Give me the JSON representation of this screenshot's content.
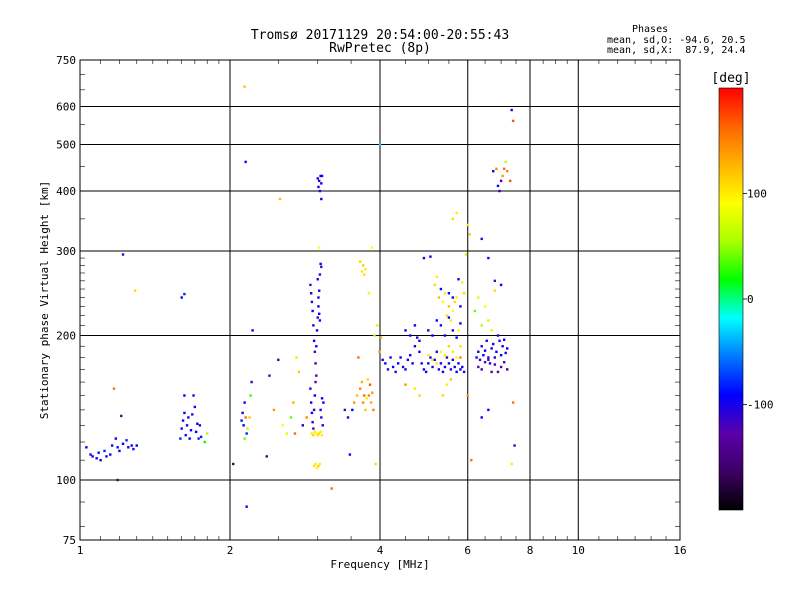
{
  "header": {
    "title_line1": "Tromsø 20171129 20:54:00-20:55:43",
    "title_line2": "RwPretec (8p)",
    "stats_heading": "Phases",
    "stats_line1": "mean, sd,O: -94.6, 20.5",
    "stats_line2": "mean, sd,X:  87.9, 24.4"
  },
  "colorbar": {
    "label": "[deg]",
    "ticks": [
      {
        "value": 100,
        "label": "100"
      },
      {
        "value": 0,
        "label": "0"
      },
      {
        "value": -100,
        "label": "-100"
      }
    ],
    "range": [
      -200,
      200
    ],
    "colors": [
      "#000000",
      "#3c0064",
      "#5a00aa",
      "#0000ff",
      "#0078ff",
      "#00ffff",
      "#00ff00",
      "#aaff00",
      "#ffff00",
      "#ffb400",
      "#ff6400",
      "#ff0000"
    ]
  },
  "chart_data": {
    "type": "scatter",
    "title": "Tromsø 20171129 20:54:00-20:55:43",
    "subtitle": "RwPretec (8p)",
    "xlabel": "Frequency [MHz]",
    "ylabel": "Stationary phase Virtual Height [km]",
    "xscale": "log2",
    "yscale": "log",
    "xlim": [
      1,
      16
    ],
    "ylim": [
      75,
      750
    ],
    "x_ticks": [
      {
        "value": 1,
        "label": "1"
      },
      {
        "value": 2,
        "label": "2"
      },
      {
        "value": 4,
        "label": "4"
      },
      {
        "value": 6,
        "label": "6"
      },
      {
        "value": 8,
        "label": "8"
      },
      {
        "value": 10,
        "label": "10"
      },
      {
        "value": 16,
        "label": "16"
      }
    ],
    "y_ticks": [
      {
        "value": 75,
        "label": "75"
      },
      {
        "value": 100,
        "label": "100"
      },
      {
        "value": 200,
        "label": "200"
      },
      {
        "value": 300,
        "label": "300"
      },
      {
        "value": 400,
        "label": "400"
      },
      {
        "value": 500,
        "label": "500"
      },
      {
        "value": 600,
        "label": "600"
      },
      {
        "value": 750,
        "label": "750"
      }
    ],
    "grid": true,
    "points": [
      [
        1.03,
        117,
        -95
      ],
      [
        1.05,
        113,
        -90
      ],
      [
        1.06,
        112,
        -100
      ],
      [
        1.08,
        111,
        -95
      ],
      [
        1.09,
        114,
        -85
      ],
      [
        1.1,
        110,
        -100
      ],
      [
        1.12,
        115,
        -80
      ],
      [
        1.13,
        112,
        -95
      ],
      [
        1.15,
        113,
        -90
      ],
      [
        1.16,
        118,
        -100
      ],
      [
        1.18,
        122,
        -95
      ],
      [
        1.19,
        117,
        -85
      ],
      [
        1.2,
        115,
        -90
      ],
      [
        1.22,
        119,
        -95
      ],
      [
        1.24,
        121,
        -80
      ],
      [
        1.25,
        117,
        -90
      ],
      [
        1.27,
        118,
        -95
      ],
      [
        1.28,
        116,
        -85
      ],
      [
        1.3,
        118,
        -90
      ],
      [
        1.19,
        100,
        -150
      ],
      [
        1.21,
        136,
        -140
      ],
      [
        1.17,
        155,
        160
      ],
      [
        1.22,
        295,
        -120
      ],
      [
        1.29,
        248,
        110
      ],
      [
        1.62,
        244,
        -80
      ],
      [
        1.6,
        240,
        -100
      ],
      [
        1.59,
        122,
        -80
      ],
      [
        1.6,
        128,
        -100
      ],
      [
        1.61,
        133,
        -95
      ],
      [
        1.62,
        138,
        -90
      ],
      [
        1.63,
        124,
        -85
      ],
      [
        1.64,
        130,
        -100
      ],
      [
        1.65,
        135,
        -95
      ],
      [
        1.66,
        122,
        -90
      ],
      [
        1.67,
        127,
        -95
      ],
      [
        1.68,
        137,
        -85
      ],
      [
        1.69,
        150,
        -110
      ],
      [
        1.7,
        142,
        -100
      ],
      [
        1.71,
        126,
        -90
      ],
      [
        1.72,
        131,
        -95
      ],
      [
        1.73,
        122,
        -80
      ],
      [
        1.74,
        130,
        -100
      ],
      [
        1.75,
        123,
        -85
      ],
      [
        1.62,
        150,
        -95
      ],
      [
        1.78,
        120,
        20
      ],
      [
        1.8,
        125,
        60
      ],
      [
        2.03,
        108,
        -160
      ],
      [
        2.11,
        133,
        -85
      ],
      [
        2.12,
        138,
        -100
      ],
      [
        2.13,
        130,
        -90
      ],
      [
        2.14,
        145,
        -95
      ],
      [
        2.15,
        135,
        160
      ],
      [
        2.14,
        122,
        40
      ],
      [
        2.16,
        125,
        -80
      ],
      [
        2.17,
        128,
        60
      ],
      [
        2.19,
        135,
        120
      ],
      [
        2.2,
        150,
        30
      ],
      [
        2.21,
        160,
        -110
      ],
      [
        2.22,
        205,
        -95
      ],
      [
        2.15,
        460,
        -100
      ],
      [
        2.16,
        88,
        -90
      ],
      [
        2.14,
        660,
        120
      ],
      [
        2.4,
        165,
        -120
      ],
      [
        2.45,
        140,
        140
      ],
      [
        2.5,
        178,
        -130
      ],
      [
        2.52,
        385,
        120
      ],
      [
        2.37,
        112,
        -150
      ],
      [
        2.55,
        130,
        90
      ],
      [
        2.6,
        125,
        80
      ],
      [
        2.65,
        135,
        40
      ],
      [
        2.68,
        145,
        130
      ],
      [
        2.72,
        180,
        70
      ],
      [
        2.75,
        168,
        120
      ],
      [
        2.7,
        125,
        160
      ],
      [
        2.8,
        130,
        -100
      ],
      [
        2.85,
        135,
        150
      ],
      [
        2.9,
        255,
        -130
      ],
      [
        2.91,
        245,
        -100
      ],
      [
        2.92,
        235,
        -110
      ],
      [
        2.93,
        225,
        -95
      ],
      [
        2.94,
        210,
        -100
      ],
      [
        2.95,
        195,
        -90
      ],
      [
        2.96,
        185,
        -120
      ],
      [
        2.97,
        175,
        -140
      ],
      [
        2.98,
        165,
        -130
      ],
      [
        2.9,
        155,
        -110
      ],
      [
        2.91,
        145,
        -100
      ],
      [
        2.92,
        138,
        -95
      ],
      [
        2.93,
        132,
        -110
      ],
      [
        2.94,
        128,
        -120
      ],
      [
        2.95,
        140,
        -100
      ],
      [
        2.96,
        150,
        -90
      ],
      [
        2.97,
        160,
        -130
      ],
      [
        2.98,
        190,
        -95
      ],
      [
        2.99,
        205,
        -100
      ],
      [
        3.0,
        218,
        -110
      ],
      [
        3.01,
        230,
        -95
      ],
      [
        3.02,
        248,
        -100
      ],
      [
        3.03,
        268,
        -110
      ],
      [
        3.04,
        282,
        -95
      ],
      [
        3.05,
        278,
        -120
      ],
      [
        3.0,
        262,
        -100
      ],
      [
        3.01,
        240,
        -105
      ],
      [
        3.02,
        222,
        -95
      ],
      [
        3.03,
        215,
        -90
      ],
      [
        3.04,
        140,
        -100
      ],
      [
        3.05,
        135,
        -110
      ],
      [
        3.06,
        148,
        -95
      ],
      [
        3.07,
        130,
        -100
      ],
      [
        3.08,
        145,
        -90
      ],
      [
        2.92,
        125,
        100
      ],
      [
        2.94,
        124,
        110
      ],
      [
        2.96,
        126,
        105
      ],
      [
        2.98,
        125,
        95
      ],
      [
        3.0,
        124,
        100
      ],
      [
        3.02,
        125,
        110
      ],
      [
        3.04,
        126,
        100
      ],
      [
        3.06,
        124,
        95
      ],
      [
        2.95,
        107,
        105
      ],
      [
        2.97,
        108,
        100
      ],
      [
        2.99,
        106,
        95
      ],
      [
        3.01,
        107,
        110
      ],
      [
        3.03,
        108,
        100
      ],
      [
        3.02,
        305,
        90
      ],
      [
        3.0,
        425,
        -100
      ],
      [
        3.02,
        420,
        -110
      ],
      [
        3.04,
        430,
        -95
      ],
      [
        3.05,
        415,
        -100
      ],
      [
        3.06,
        430,
        -90
      ],
      [
        3.01,
        408,
        -95
      ],
      [
        3.03,
        400,
        -110
      ],
      [
        3.05,
        385,
        -100
      ],
      [
        3.2,
        96,
        160
      ],
      [
        3.4,
        140,
        -120
      ],
      [
        3.45,
        135,
        -100
      ],
      [
        3.48,
        113,
        -95
      ],
      [
        3.52,
        140,
        -90
      ],
      [
        3.55,
        145,
        140
      ],
      [
        3.6,
        150,
        120
      ],
      [
        3.62,
        180,
        160
      ],
      [
        3.65,
        155,
        150
      ],
      [
        3.68,
        160,
        130
      ],
      [
        3.7,
        145,
        145
      ],
      [
        3.72,
        150,
        160
      ],
      [
        3.74,
        140,
        120
      ],
      [
        3.76,
        148,
        100
      ],
      [
        3.78,
        162,
        110
      ],
      [
        3.8,
        150,
        150
      ],
      [
        3.82,
        158,
        170
      ],
      [
        3.84,
        145,
        130
      ],
      [
        3.86,
        152,
        140
      ],
      [
        3.88,
        140,
        150
      ],
      [
        3.65,
        285,
        110
      ],
      [
        3.68,
        272,
        100
      ],
      [
        3.7,
        280,
        115
      ],
      [
        3.72,
        268,
        105
      ],
      [
        3.74,
        275,
        100
      ],
      [
        3.8,
        245,
        80
      ],
      [
        3.85,
        305,
        90
      ],
      [
        3.9,
        200,
        60
      ],
      [
        3.95,
        210,
        70
      ],
      [
        3.92,
        108,
        110
      ],
      [
        3.99,
        185,
        140
      ],
      [
        4.02,
        198,
        130
      ],
      [
        4.0,
        500,
        -30
      ],
      [
        4.05,
        178,
        -100
      ],
      [
        4.1,
        175,
        -95
      ],
      [
        4.15,
        170,
        -110
      ],
      [
        4.2,
        180,
        -100
      ],
      [
        4.25,
        172,
        -90
      ],
      [
        4.3,
        168,
        -105
      ],
      [
        4.35,
        175,
        -95
      ],
      [
        4.4,
        180,
        -100
      ],
      [
        4.45,
        172,
        -110
      ],
      [
        4.5,
        170,
        -95
      ],
      [
        4.55,
        178,
        -100
      ],
      [
        4.6,
        182,
        -90
      ],
      [
        4.65,
        175,
        -95
      ],
      [
        4.7,
        190,
        -100
      ],
      [
        4.75,
        198,
        -110
      ],
      [
        4.8,
        185,
        -95
      ],
      [
        4.85,
        175,
        -100
      ],
      [
        4.9,
        170,
        -90
      ],
      [
        4.95,
        168,
        -100
      ],
      [
        5.0,
        175,
        -95
      ],
      [
        5.05,
        180,
        -100
      ],
      [
        5.1,
        172,
        -110
      ],
      [
        5.15,
        178,
        -95
      ],
      [
        5.2,
        185,
        -100
      ],
      [
        5.25,
        170,
        -90
      ],
      [
        5.3,
        175,
        -100
      ],
      [
        5.35,
        168,
        -95
      ],
      [
        5.4,
        172,
        -100
      ],
      [
        5.45,
        180,
        -110
      ],
      [
        5.5,
        175,
        -95
      ],
      [
        5.55,
        170,
        -100
      ],
      [
        5.6,
        178,
        -100
      ],
      [
        5.65,
        172,
        -95
      ],
      [
        5.7,
        168,
        -90
      ],
      [
        5.75,
        175,
        -100
      ],
      [
        5.8,
        170,
        -95
      ],
      [
        5.85,
        172,
        -100
      ],
      [
        5.9,
        168,
        -110
      ],
      [
        4.5,
        205,
        -100
      ],
      [
        4.6,
        200,
        -90
      ],
      [
        4.7,
        210,
        -95
      ],
      [
        4.8,
        195,
        -100
      ],
      [
        5.0,
        205,
        -100
      ],
      [
        5.1,
        200,
        -95
      ],
      [
        5.2,
        215,
        -90
      ],
      [
        5.3,
        210,
        -100
      ],
      [
        5.4,
        200,
        -95
      ],
      [
        5.5,
        218,
        -100
      ],
      [
        5.6,
        205,
        -110
      ],
      [
        5.7,
        198,
        -95
      ],
      [
        5.8,
        212,
        -100
      ],
      [
        5.3,
        250,
        -100
      ],
      [
        5.5,
        245,
        -95
      ],
      [
        5.6,
        240,
        -100
      ],
      [
        5.75,
        262,
        -90
      ],
      [
        5.8,
        230,
        -100
      ],
      [
        4.9,
        290,
        -100
      ],
      [
        5.05,
        292,
        -95
      ],
      [
        5.15,
        255,
        110
      ],
      [
        5.2,
        265,
        100
      ],
      [
        5.25,
        240,
        120
      ],
      [
        5.35,
        235,
        90
      ],
      [
        5.4,
        245,
        100
      ],
      [
        5.45,
        220,
        110
      ],
      [
        5.5,
        230,
        120
      ],
      [
        5.55,
        215,
        100
      ],
      [
        5.6,
        225,
        90
      ],
      [
        5.65,
        235,
        110
      ],
      [
        5.7,
        240,
        100
      ],
      [
        5.75,
        205,
        95
      ],
      [
        5.0,
        182,
        100
      ],
      [
        5.1,
        178,
        110
      ],
      [
        5.2,
        175,
        100
      ],
      [
        5.3,
        185,
        90
      ],
      [
        5.4,
        182,
        100
      ],
      [
        5.5,
        190,
        110
      ],
      [
        5.6,
        185,
        100
      ],
      [
        5.7,
        180,
        95
      ],
      [
        5.8,
        190,
        105
      ],
      [
        5.35,
        150,
        110
      ],
      [
        5.45,
        158,
        100
      ],
      [
        5.55,
        162,
        120
      ],
      [
        4.5,
        158,
        140
      ],
      [
        4.7,
        155,
        100
      ],
      [
        4.8,
        150,
        110
      ],
      [
        5.85,
        258,
        100
      ],
      [
        5.9,
        245,
        110
      ],
      [
        5.95,
        295,
        60
      ],
      [
        6.0,
        340,
        100
      ],
      [
        6.05,
        325,
        120
      ],
      [
        5.6,
        350,
        110
      ],
      [
        5.7,
        360,
        100
      ],
      [
        5.8,
        180,
        150
      ],
      [
        6.1,
        110,
        160
      ],
      [
        6.0,
        150,
        140
      ],
      [
        6.25,
        180,
        -100
      ],
      [
        6.3,
        185,
        -95
      ],
      [
        6.35,
        178,
        -110
      ],
      [
        6.4,
        190,
        -100
      ],
      [
        6.45,
        182,
        -90
      ],
      [
        6.5,
        186,
        -95
      ],
      [
        6.55,
        195,
        -100
      ],
      [
        6.6,
        180,
        -110
      ],
      [
        6.65,
        175,
        -95
      ],
      [
        6.7,
        188,
        -100
      ],
      [
        6.75,
        192,
        -90
      ],
      [
        6.8,
        180,
        -100
      ],
      [
        6.85,
        185,
        -95
      ],
      [
        6.9,
        200,
        -100
      ],
      [
        6.95,
        195,
        -110
      ],
      [
        7.0,
        182,
        -95
      ],
      [
        7.05,
        190,
        -100
      ],
      [
        7.1,
        196,
        -90
      ],
      [
        7.15,
        184,
        -100
      ],
      [
        7.2,
        188,
        -95
      ],
      [
        6.3,
        172,
        -130
      ],
      [
        6.4,
        170,
        -140
      ],
      [
        6.5,
        176,
        -125
      ],
      [
        6.6,
        178,
        -135
      ],
      [
        6.7,
        168,
        -130
      ],
      [
        6.8,
        174,
        -140
      ],
      [
        6.9,
        168,
        -125
      ],
      [
        7.0,
        172,
        -130
      ],
      [
        7.1,
        176,
        -135
      ],
      [
        7.2,
        170,
        -140
      ],
      [
        6.2,
        225,
        40
      ],
      [
        6.3,
        240,
        80
      ],
      [
        6.4,
        210,
        60
      ],
      [
        6.5,
        230,
        90
      ],
      [
        6.6,
        215,
        70
      ],
      [
        6.7,
        205,
        100
      ],
      [
        6.8,
        248,
        110
      ],
      [
        6.4,
        318,
        -110
      ],
      [
        6.6,
        290,
        -100
      ],
      [
        6.8,
        260,
        -120
      ],
      [
        7.0,
        255,
        -95
      ],
      [
        6.9,
        410,
        -100
      ],
      [
        6.95,
        400,
        -110
      ],
      [
        7.0,
        420,
        -120
      ],
      [
        6.85,
        445,
        150
      ],
      [
        7.05,
        430,
        140
      ],
      [
        7.1,
        445,
        160
      ],
      [
        7.15,
        460,
        60
      ],
      [
        6.75,
        440,
        -100
      ],
      [
        7.2,
        440,
        150
      ],
      [
        7.3,
        420,
        170
      ],
      [
        7.35,
        590,
        -100
      ],
      [
        7.4,
        560,
        170
      ],
      [
        7.4,
        145,
        160
      ],
      [
        7.45,
        118,
        -120
      ],
      [
        7.35,
        108,
        100
      ],
      [
        6.4,
        135,
        -95
      ],
      [
        6.6,
        140,
        -100
      ]
    ]
  }
}
